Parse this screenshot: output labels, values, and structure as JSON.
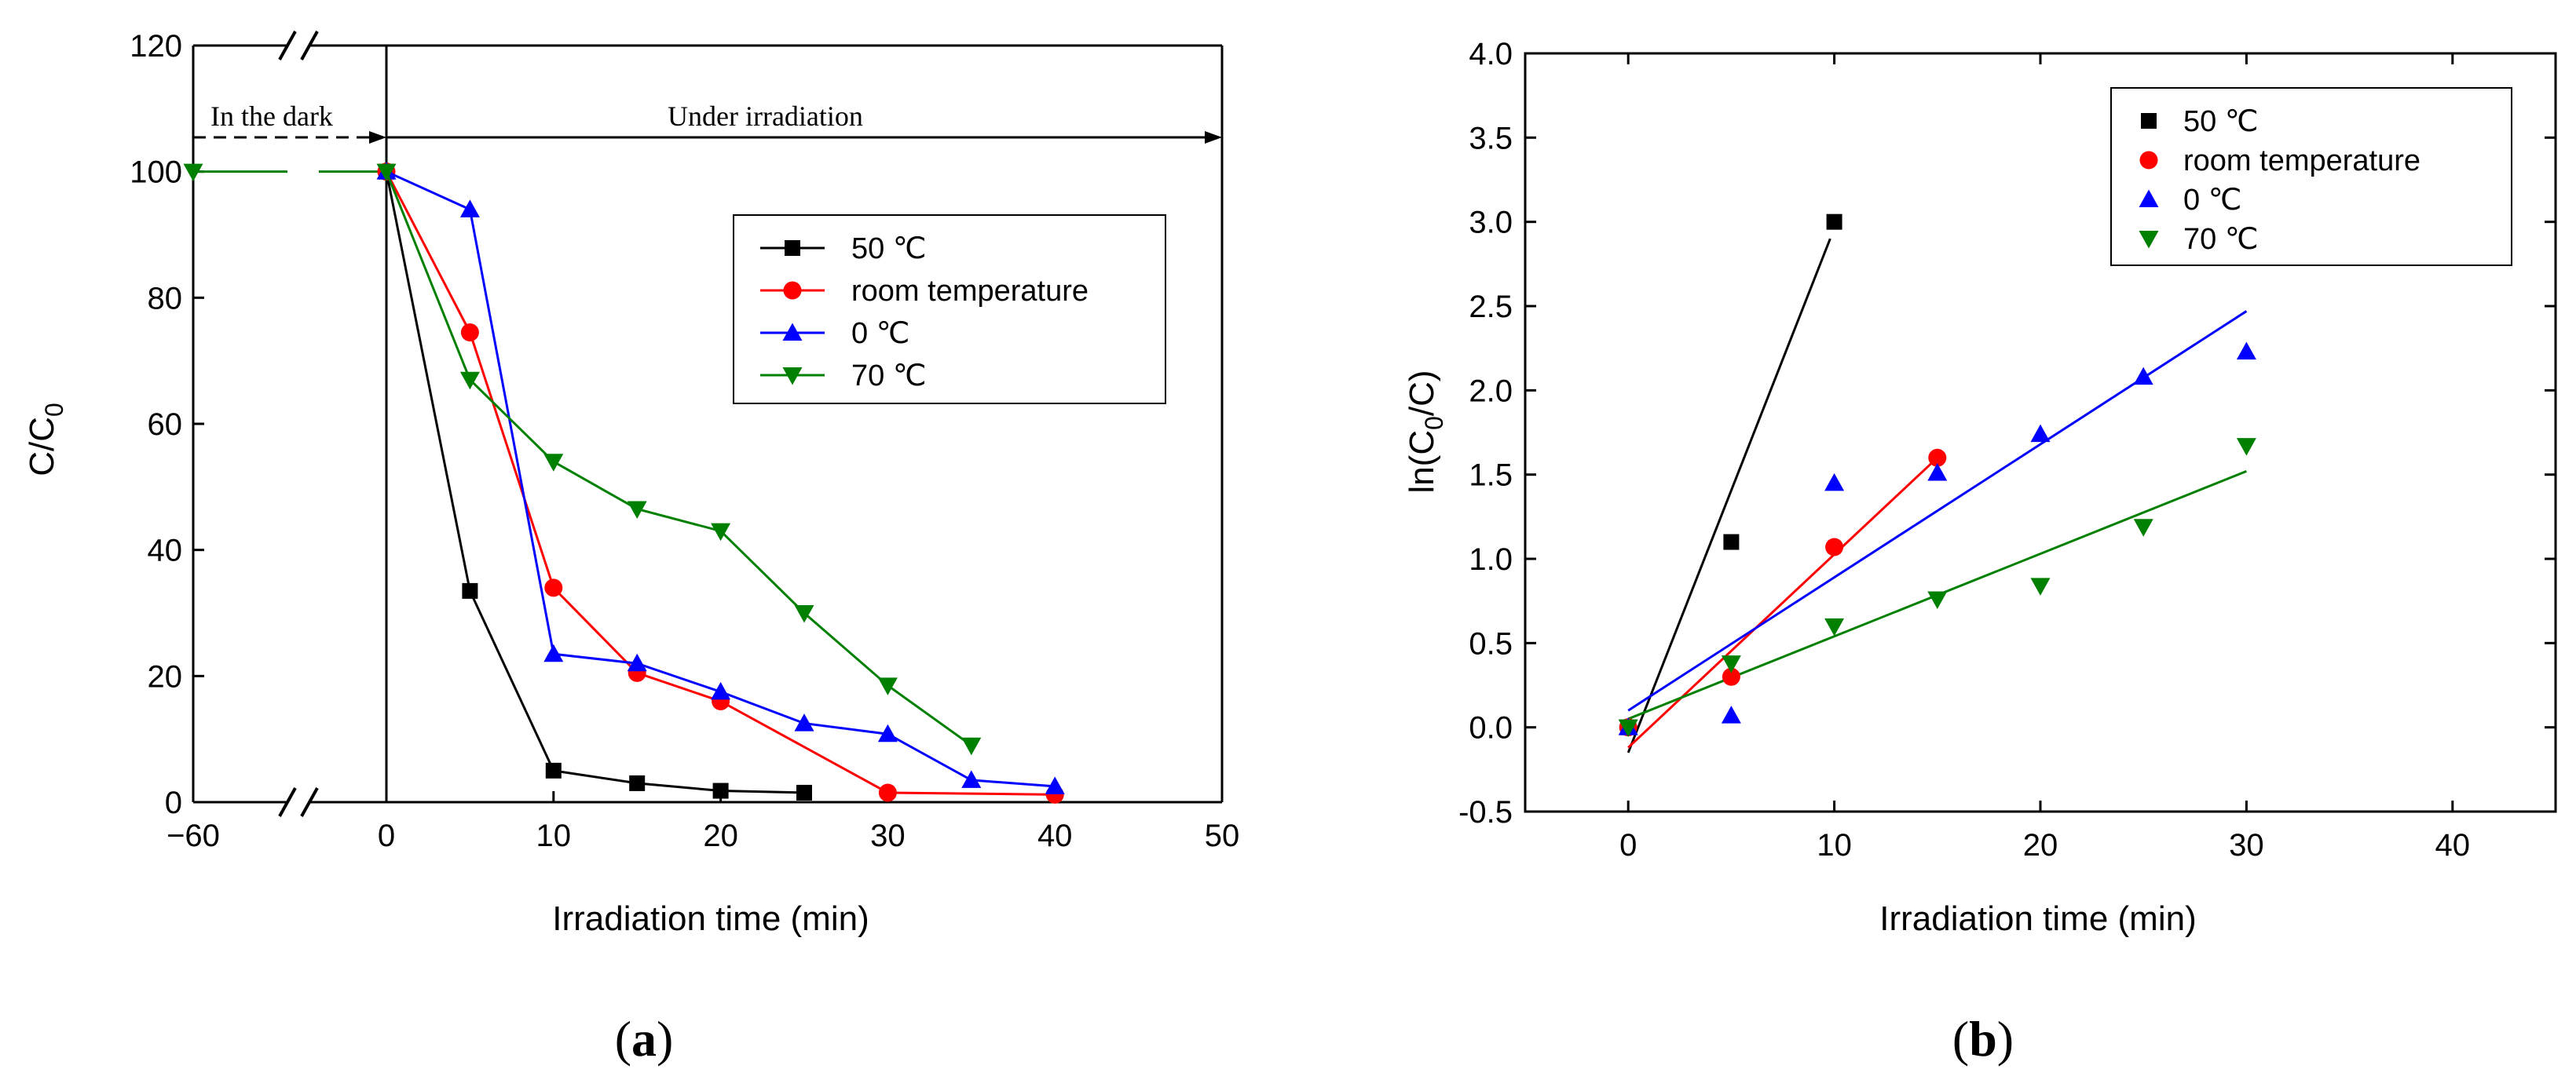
{
  "chart_data": [
    {
      "type": "line",
      "panel_label": "a",
      "title": "",
      "xlabel": "Irradiation time (min)",
      "ylabel": "C/C",
      "ylabel_sub": "0",
      "xlim": [
        -60,
        50
      ],
      "ylim": [
        0,
        120
      ],
      "xticks": [
        -60,
        0,
        10,
        20,
        30,
        40,
        50
      ],
      "xtick_labels": [
        "−60",
        "0",
        "10",
        "20",
        "30",
        "40",
        "50"
      ],
      "yticks": [
        0,
        20,
        40,
        60,
        80,
        100,
        120
      ],
      "ytick_labels": [
        "0",
        "20",
        "40",
        "60",
        "80",
        "100",
        "120"
      ],
      "axis_break": "between −60 and 0 on the x axis",
      "annotations": {
        "dark": "In the dark",
        "irradiation": "Under irradiation"
      },
      "legend_position": "upper-right",
      "series": [
        {
          "name": "50 ℃",
          "color": "#000000",
          "marker": "square",
          "x": [
            0,
            5,
            10,
            15,
            20,
            25
          ],
          "y": [
            100,
            33.5,
            5,
            3,
            1.8,
            1.5
          ]
        },
        {
          "name": "room temperature",
          "color": "#ff0000",
          "marker": "circle",
          "x": [
            0,
            5,
            10,
            15,
            20,
            30,
            40
          ],
          "y": [
            100,
            74.5,
            34,
            20.5,
            16,
            1.5,
            1.2
          ]
        },
        {
          "name": "0 ℃",
          "color": "#0000ff",
          "marker": "triangle-up",
          "x": [
            0,
            5,
            10,
            15,
            20,
            25,
            30,
            35,
            40
          ],
          "y": [
            100,
            94,
            23.5,
            22,
            17.5,
            12.5,
            10.8,
            3.5,
            2.5
          ]
        },
        {
          "name": "70 ℃",
          "color": "#008000",
          "marker": "triangle-down",
          "x": [
            0,
            5,
            10,
            15,
            20,
            25,
            30,
            35
          ],
          "y": [
            100,
            67,
            54,
            46.5,
            43,
            30,
            18.5,
            9
          ]
        }
      ],
      "dark_segment": {
        "x": [
          -60,
          0
        ],
        "y": [
          100,
          100
        ],
        "color": "#008000"
      }
    },
    {
      "type": "scatter",
      "panel_label": "b",
      "title": "",
      "xlabel": "Irradiation time (min)",
      "ylabel": "ln(C",
      "ylabel_sub": "0",
      "ylabel_end": "/C)",
      "xlim": [
        -5,
        45
      ],
      "ylim": [
        -0.5,
        4.0
      ],
      "xticks": [
        0,
        10,
        20,
        30,
        40
      ],
      "xtick_labels": [
        "0",
        "10",
        "20",
        "30",
        "40"
      ],
      "yticks": [
        -0.5,
        0,
        0.5,
        1.0,
        1.5,
        2.0,
        2.5,
        3.0,
        3.5,
        4.0
      ],
      "ytick_labels": [
        "-0.5",
        "0.0",
        "0.5",
        "1.0",
        "1.5",
        "2.0",
        "2.5",
        "3.0",
        "3.5",
        "4.0"
      ],
      "legend_position": "upper-right",
      "series": [
        {
          "name": "50 ℃",
          "color": "#000000",
          "marker": "square",
          "x": [
            0,
            5,
            10
          ],
          "y": [
            0,
            1.1,
            3.0
          ],
          "fit": [
            [
              0,
              -0.15
            ],
            [
              9.8,
              2.9
            ]
          ]
        },
        {
          "name": "room temperature",
          "color": "#ff0000",
          "marker": "circle",
          "x": [
            0,
            5,
            10,
            15
          ],
          "y": [
            0,
            0.3,
            1.07,
            1.6
          ],
          "fit": [
            [
              0,
              -0.12
            ],
            [
              15,
              1.6
            ]
          ]
        },
        {
          "name": "0 ℃",
          "color": "#0000ff",
          "marker": "triangle-up",
          "x": [
            0,
            5,
            10,
            15,
            20,
            25,
            30
          ],
          "y": [
            0,
            0.07,
            1.45,
            1.51,
            1.74,
            2.08,
            2.23
          ],
          "fit": [
            [
              0,
              0.1
            ],
            [
              30,
              2.47
            ]
          ]
        },
        {
          "name": "70 ℃",
          "color": "#008000",
          "marker": "triangle-down",
          "x": [
            0,
            5,
            10,
            15,
            20,
            25,
            30
          ],
          "y": [
            0,
            0.38,
            0.6,
            0.76,
            0.84,
            1.19,
            1.67
          ],
          "fit": [
            [
              0,
              0.05
            ],
            [
              30,
              1.52
            ]
          ]
        }
      ]
    }
  ]
}
